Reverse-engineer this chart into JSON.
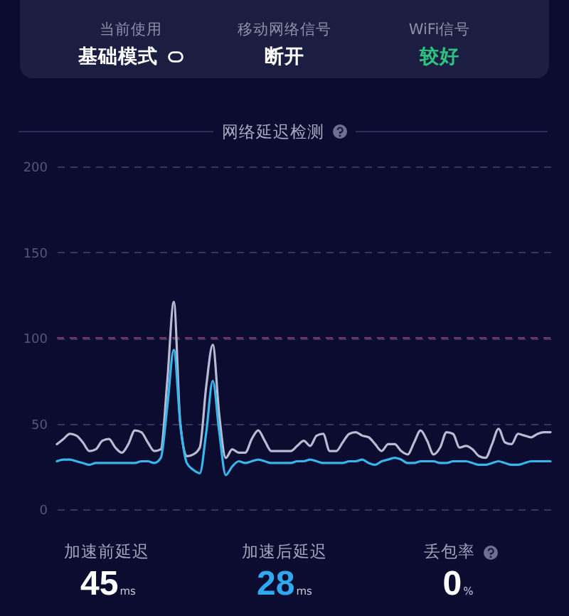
{
  "chart_data": {
    "type": "line",
    "title": "网络延迟检测",
    "categories": [
      null,
      null,
      null,
      null,
      null,
      null,
      null,
      null,
      null,
      null,
      null,
      null,
      null,
      null,
      null,
      null,
      null,
      null,
      null,
      null,
      null,
      null,
      null,
      null,
      null,
      null,
      null,
      null,
      null,
      null,
      null,
      null,
      null,
      null,
      null,
      null,
      null,
      null,
      null,
      null,
      null,
      null,
      null,
      null,
      null,
      null,
      null,
      null,
      null,
      null,
      null,
      null,
      null,
      null,
      null,
      null,
      null,
      null,
      null,
      null,
      null,
      null,
      null,
      null,
      null,
      null,
      null,
      null,
      null,
      null,
      null,
      null,
      null,
      null,
      null,
      null,
      null
    ],
    "series": [
      {
        "color": "#b9bbd2",
        "values": [
          38,
          41,
          44,
          43,
          39,
          34,
          35,
          40,
          41,
          36,
          33,
          38,
          46,
          45,
          39,
          34,
          35,
          75,
          121,
          50,
          31,
          32,
          36,
          72,
          96,
          55,
          30,
          35,
          33,
          33,
          41,
          46,
          40,
          34,
          34,
          34,
          34,
          37,
          40,
          37,
          43,
          44,
          34,
          34,
          39,
          44,
          45,
          43,
          42,
          38,
          34,
          38,
          38,
          34,
          32,
          39,
          46,
          40,
          32,
          36,
          45,
          44,
          36,
          37,
          35,
          31,
          30,
          38,
          47,
          39,
          38,
          44,
          43,
          42,
          44,
          45,
          45
        ]
      },
      {
        "color": "#38b6ec",
        "values": [
          28,
          29,
          29,
          28,
          27,
          26,
          27,
          27,
          27,
          27,
          27,
          27,
          27,
          28,
          28,
          27,
          30,
          60,
          93,
          50,
          27,
          23,
          21,
          45,
          75,
          45,
          20,
          25,
          28,
          27,
          28,
          29,
          28,
          27,
          27,
          27,
          27,
          28,
          28,
          29,
          28,
          27,
          27,
          27,
          27,
          28,
          28,
          29,
          27,
          26,
          28,
          29,
          30,
          29,
          27,
          27,
          28,
          28,
          28,
          27,
          27,
          28,
          28,
          28,
          27,
          26,
          26,
          27,
          28,
          27,
          26,
          26,
          27,
          28,
          28,
          28,
          28
        ]
      }
    ],
    "ylim": [
      0,
      200
    ],
    "yticks": [
      0,
      50,
      100,
      150,
      200
    ],
    "grid": "y",
    "tick_labels": "y",
    "marker": "none",
    "ref_lines": [
      {
        "axis": "y",
        "value": 100,
        "color": "#7e3860",
        "line_style": "dashed"
      }
    ],
    "annotations": [
      "当前使用",
      "基础模式",
      "移动网络信号",
      "断开",
      "WiFi信号",
      "较好",
      "加速前延迟",
      "45",
      "ms",
      "加速后延迟",
      "28",
      "ms",
      "丢包率",
      "0",
      "%"
    ]
  }
}
